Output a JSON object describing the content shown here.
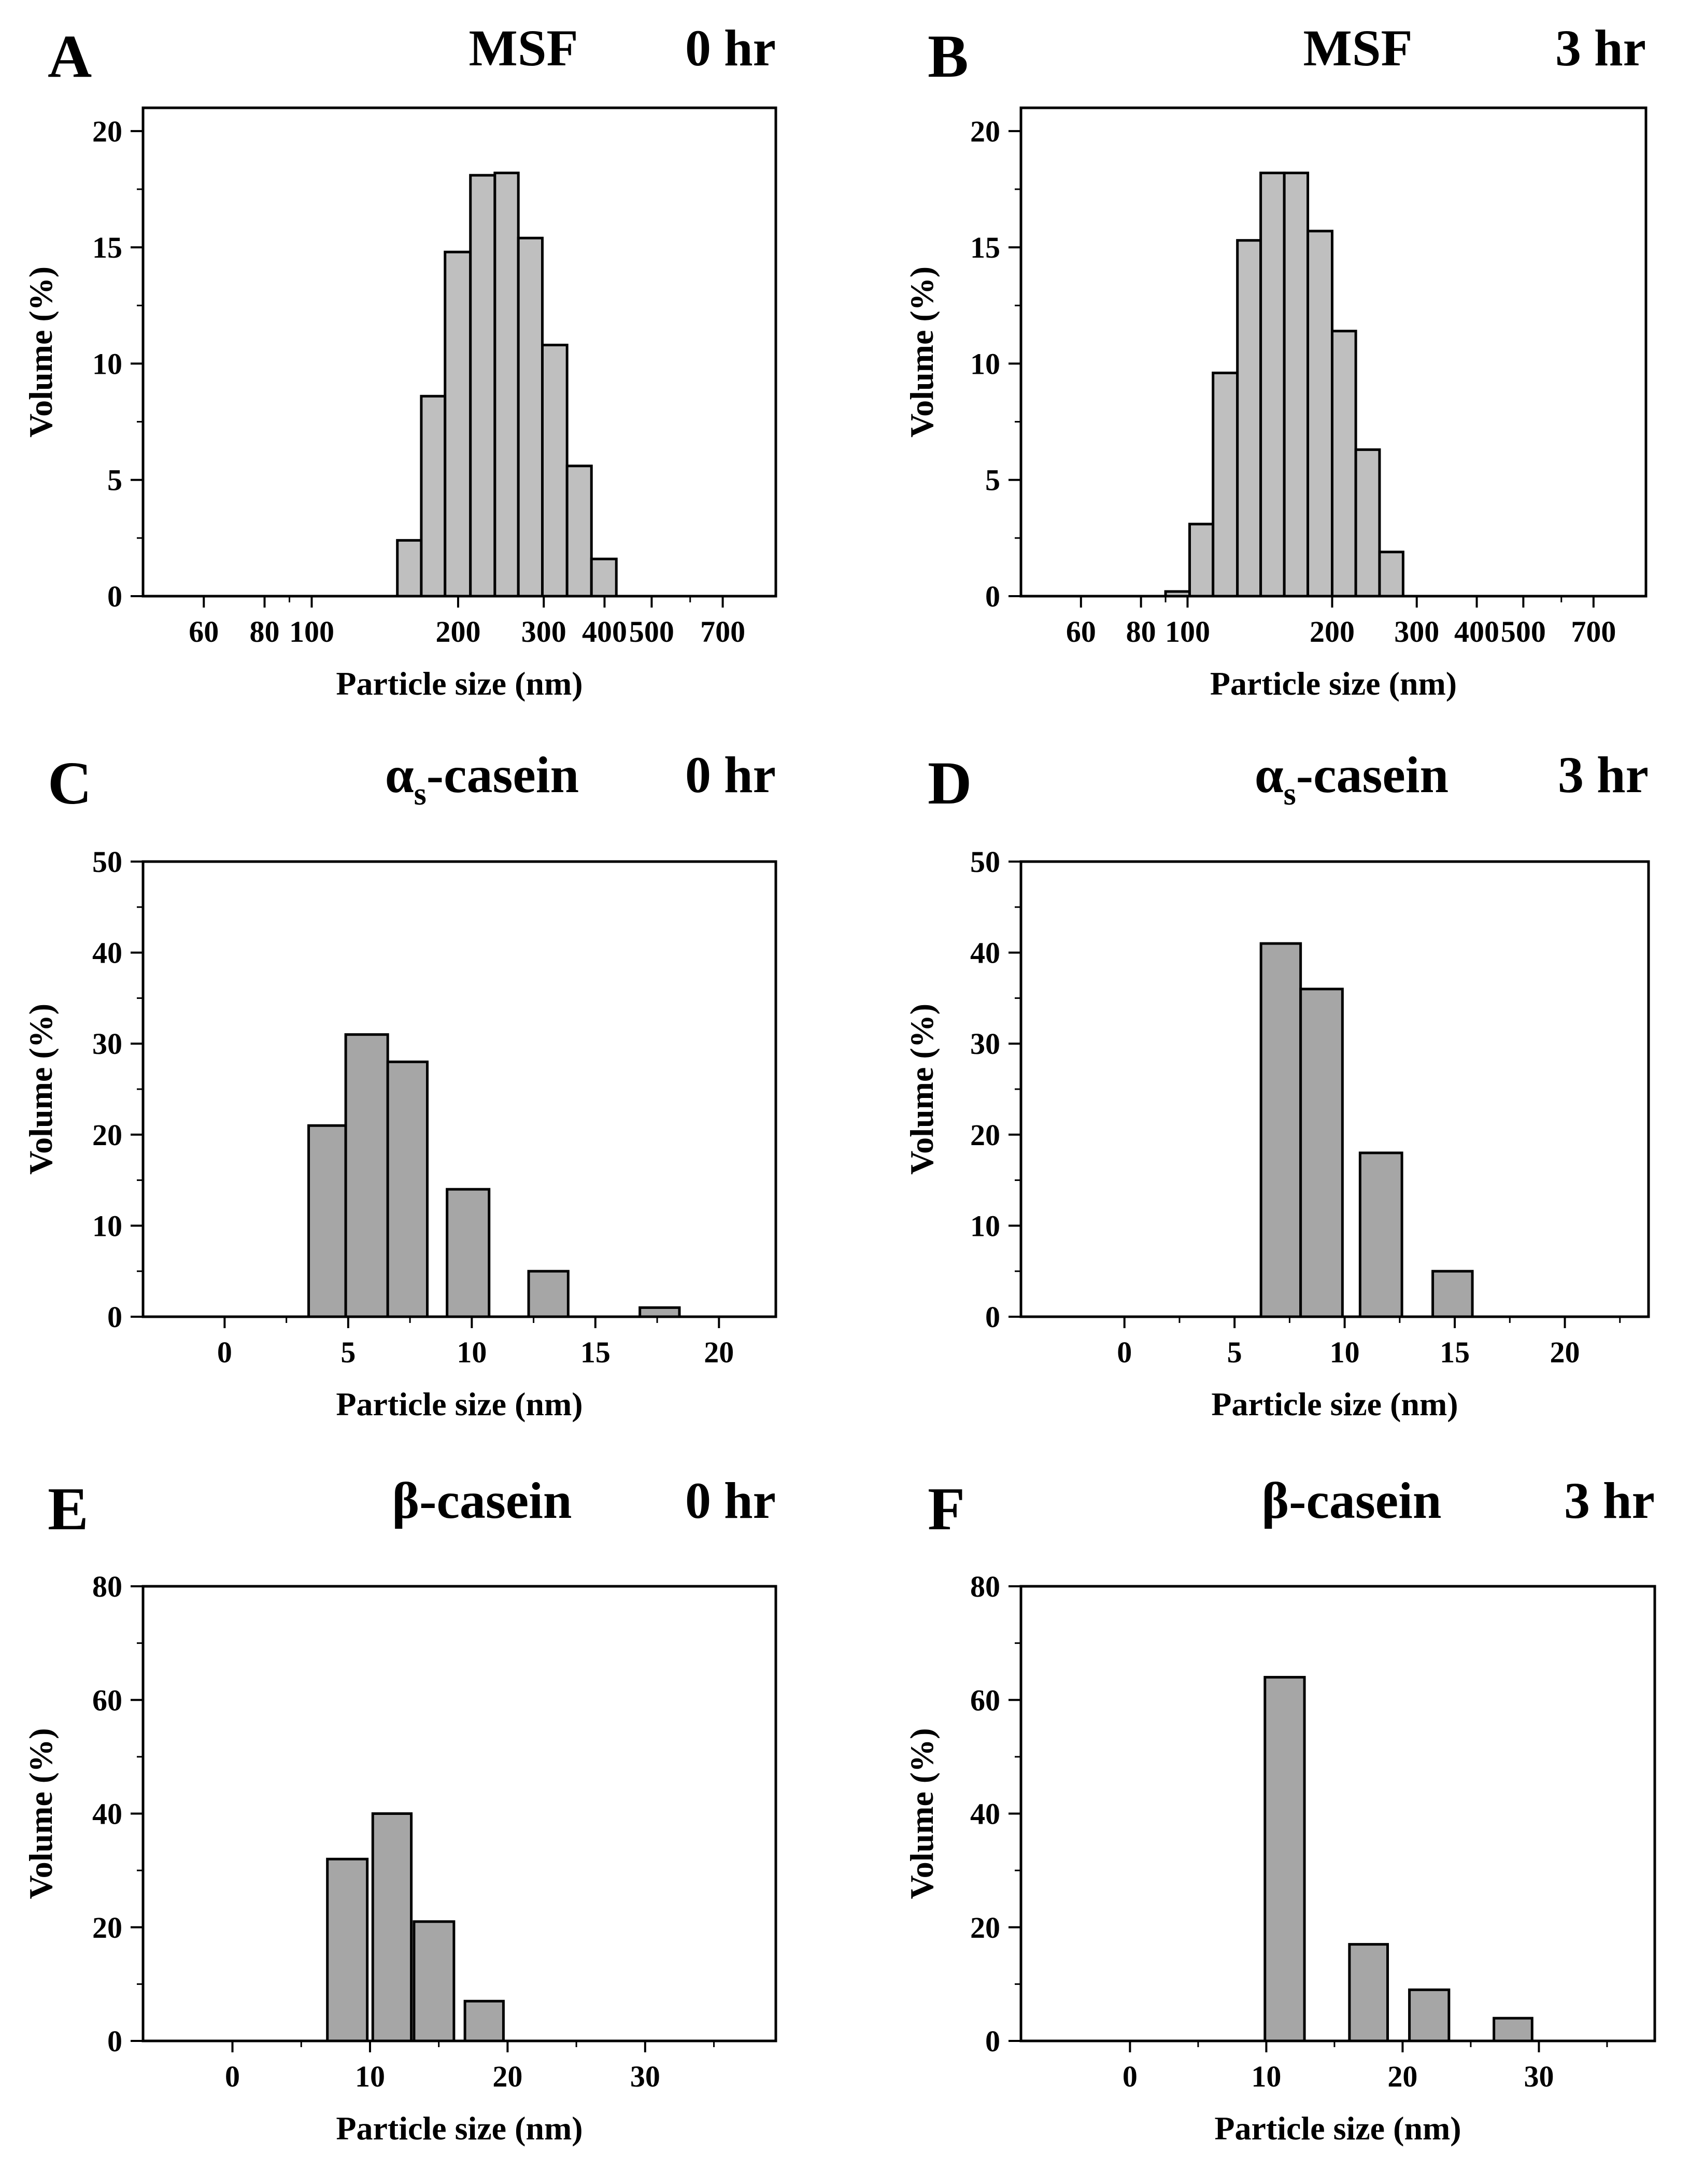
{
  "chart_data": [
    {
      "id": "A",
      "type": "bar",
      "panel_letter": "A",
      "title": "MSF",
      "time": "0 hr",
      "xlabel": "Particle size (nm)",
      "ylabel": "Volume (%)",
      "x_scale": "log",
      "xlim": [
        45,
        900
      ],
      "ylim": [
        0,
        21
      ],
      "yticks": [
        0,
        5,
        10,
        15,
        20
      ],
      "xticks": [
        60,
        80,
        100,
        200,
        300,
        400,
        500,
        700
      ],
      "bar_color": "#bfbfbf",
      "bars": [
        {
          "from": 150,
          "to": 168,
          "value": 2.4
        },
        {
          "from": 168,
          "to": 188,
          "value": 8.6
        },
        {
          "from": 188,
          "to": 212,
          "value": 14.8
        },
        {
          "from": 212,
          "to": 238,
          "value": 18.1
        },
        {
          "from": 238,
          "to": 266,
          "value": 18.2
        },
        {
          "from": 266,
          "to": 298,
          "value": 15.4
        },
        {
          "from": 298,
          "to": 335,
          "value": 10.8
        },
        {
          "from": 335,
          "to": 376,
          "value": 5.6
        },
        {
          "from": 376,
          "to": 423,
          "value": 1.6
        }
      ]
    },
    {
      "id": "B",
      "type": "bar",
      "panel_letter": "B",
      "title": "MSF",
      "time": "3 hr",
      "xlabel": "Particle size (nm)",
      "ylabel": "Volume (%)",
      "x_scale": "log",
      "xlim": [
        45,
        900
      ],
      "ylim": [
        0,
        21
      ],
      "yticks": [
        0,
        5,
        10,
        15,
        20
      ],
      "xticks": [
        60,
        80,
        100,
        200,
        300,
        400,
        500,
        700
      ],
      "xtick_labels": [
        "60",
        "80",
        "100",
        "200",
        "300",
        "400",
        "500",
        "700"
      ],
      "bar_color": "#bfbfbf",
      "bars": [
        {
          "from": 90,
          "to": 101,
          "value": 0.2
        },
        {
          "from": 101,
          "to": 113,
          "value": 3.1
        },
        {
          "from": 113,
          "to": 127,
          "value": 9.6
        },
        {
          "from": 127,
          "to": 142,
          "value": 15.3
        },
        {
          "from": 142,
          "to": 159,
          "value": 18.2
        },
        {
          "from": 159,
          "to": 178,
          "value": 18.2
        },
        {
          "from": 178,
          "to": 200,
          "value": 15.7
        },
        {
          "from": 200,
          "to": 224,
          "value": 11.4
        },
        {
          "from": 224,
          "to": 251,
          "value": 6.3
        },
        {
          "from": 251,
          "to": 281,
          "value": 1.9
        }
      ]
    },
    {
      "id": "C",
      "type": "bar",
      "panel_letter": "C",
      "title": "αs-casein",
      "title_main": "α",
      "title_sub": "s",
      "title_rest": "-casein",
      "time": "0 hr",
      "xlabel": "Particle size (nm)",
      "ylabel": "Volume (%)",
      "x_scale": "linear",
      "xlim": [
        -3.3,
        22.3
      ],
      "ylim": [
        0,
        50
      ],
      "yticks": [
        0,
        10,
        20,
        30,
        40,
        50
      ],
      "xticks": [
        0,
        5,
        10,
        15,
        20
      ],
      "bar_color": "#a6a6a6",
      "bars": [
        {
          "from": 3.4,
          "to": 4.9,
          "value": 21
        },
        {
          "from": 4.9,
          "to": 6.6,
          "value": 31
        },
        {
          "from": 6.6,
          "to": 8.2,
          "value": 28
        },
        {
          "from": 9.0,
          "to": 10.7,
          "value": 14
        },
        {
          "from": 12.3,
          "to": 13.9,
          "value": 5
        },
        {
          "from": 16.8,
          "to": 18.4,
          "value": 1
        }
      ]
    },
    {
      "id": "D",
      "type": "bar",
      "panel_letter": "D",
      "title": "αs-casein",
      "title_main": "α",
      "title_sub": "s",
      "title_rest": "-casein",
      "time": "3 hr",
      "xlabel": "Particle size (nm)",
      "ylabel": "Volume (%)",
      "x_scale": "linear",
      "xlim": [
        -4.7,
        23.8
      ],
      "ylim": [
        0,
        50
      ],
      "yticks": [
        0,
        10,
        20,
        30,
        40,
        50
      ],
      "xticks": [
        0,
        5,
        10,
        15,
        20
      ],
      "bar_color": "#a6a6a6",
      "bars": [
        {
          "from": 6.2,
          "to": 8.0,
          "value": 41
        },
        {
          "from": 8.0,
          "to": 9.9,
          "value": 36
        },
        {
          "from": 10.7,
          "to": 12.6,
          "value": 18
        },
        {
          "from": 14.0,
          "to": 15.8,
          "value": 5
        }
      ]
    },
    {
      "id": "E",
      "type": "bar",
      "panel_letter": "E",
      "title": "β-casein",
      "time": "0 hr",
      "xlabel": "Particle size (nm)",
      "ylabel": "Volume (%)",
      "x_scale": "linear",
      "xlim": [
        -6.5,
        39.5
      ],
      "ylim": [
        0,
        80
      ],
      "yticks": [
        0,
        20,
        40,
        60,
        80
      ],
      "xticks": [
        0,
        10,
        20,
        30
      ],
      "bar_color": "#a6a6a6",
      "bars": [
        {
          "from": 6.9,
          "to": 9.8,
          "value": 32
        },
        {
          "from": 10.2,
          "to": 13.0,
          "value": 40
        },
        {
          "from": 13.2,
          "to": 16.1,
          "value": 21
        },
        {
          "from": 16.9,
          "to": 19.7,
          "value": 7
        }
      ]
    },
    {
      "id": "F",
      "type": "bar",
      "panel_letter": "F",
      "title": "β-casein",
      "time": "3 hr",
      "xlabel": "Particle size (nm)",
      "ylabel": "Volume (%)",
      "x_scale": "linear",
      "xlim": [
        -8.0,
        38.5
      ],
      "ylim": [
        0,
        80
      ],
      "yticks": [
        0,
        20,
        40,
        60,
        80
      ],
      "xticks": [
        0,
        10,
        20,
        30
      ],
      "bar_color": "#a6a6a6",
      "bars": [
        {
          "from": 9.9,
          "to": 12.8,
          "value": 64
        },
        {
          "from": 16.1,
          "to": 18.9,
          "value": 17
        },
        {
          "from": 20.5,
          "to": 23.4,
          "value": 9
        },
        {
          "from": 26.7,
          "to": 29.5,
          "value": 4
        }
      ]
    }
  ]
}
